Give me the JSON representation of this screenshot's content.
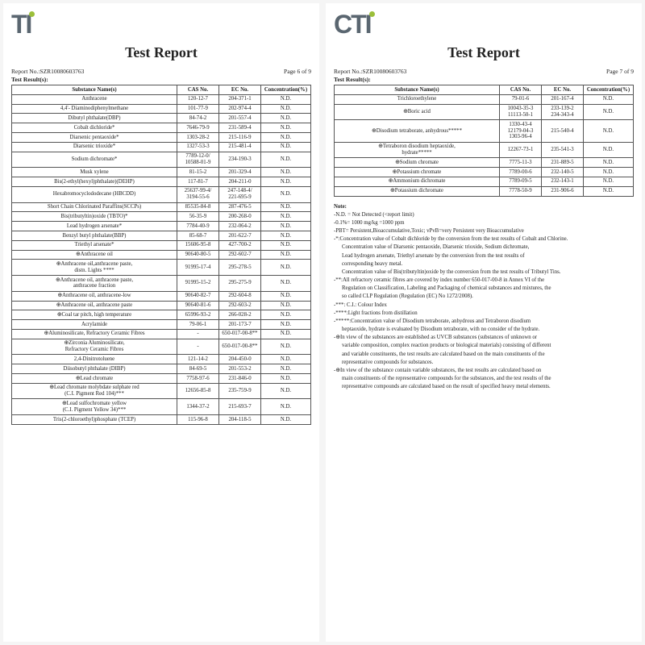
{
  "logo": {
    "full": "CTI",
    "partial": "TI"
  },
  "title": "Test Report",
  "reportNo": "Report No.:SZR10080603763",
  "page6": "Page 6 of 9",
  "page7": "Page 7 of 9",
  "resultLabel": "Test Result(s):",
  "headers": {
    "name": "Substance Name(s)",
    "cas": "CAS No.",
    "ec": "EC No.",
    "conc": "Concentration(%)"
  },
  "nd": "N.D.",
  "table6": [
    {
      "n": "Anthracene",
      "c": "120-12-7",
      "e": "204-371-1"
    },
    {
      "n": "4,4'- Diaminodiphenylmethane",
      "c": "101-77-9",
      "e": "202-974-4"
    },
    {
      "n": "Dibutyl phthalate(DBP)",
      "c": "84-74-2",
      "e": "201-557-4"
    },
    {
      "n": "Cobalt dichloride*",
      "c": "7646-79-9",
      "e": "231-589-4"
    },
    {
      "n": "Diarsenic pentaoxide*",
      "c": "1303-28-2",
      "e": "215-116-9"
    },
    {
      "n": "Diarsenic trioxide*",
      "c": "1327-53-3",
      "e": "215-481-4"
    },
    {
      "n": "Sodium dichromate*",
      "c": "7789-12-0/\n10588-01-9",
      "e": "234-190-3"
    },
    {
      "n": "Musk xylene",
      "c": "81-15-2",
      "e": "201-329-4"
    },
    {
      "n": "Bis(2-ethyl(hexyl)phthalate)(DEHP)",
      "c": "117-81-7",
      "e": "204-211-0"
    },
    {
      "n": "Hexabromocyclododecane (HBCDD)",
      "c": "25637-99-4/\n3194-55-6",
      "e": "247-148-4/\n221-695-9"
    },
    {
      "n": "Short Chain Chlorinated Paraffins(SCCPs)",
      "c": "85535-84-8",
      "e": "287-476-5"
    },
    {
      "n": "Bis(tributyltin)oxide (TBTO)*",
      "c": "56-35-9",
      "e": "200-268-0"
    },
    {
      "n": "Lead hydrogen arsenate*",
      "c": "7784-40-9",
      "e": "232-064-2"
    },
    {
      "n": "Benzyl butyl phthalate(BBP)",
      "c": "85-68-7",
      "e": "201-622-7"
    },
    {
      "n": "Triethyl arsenate*",
      "c": "15606-95-8",
      "e": "427-700-2"
    },
    {
      "n": "⊕Anthracene oil",
      "c": "90640-80-5",
      "e": "292-602-7"
    },
    {
      "n": "⊕Anthracene oil,anthracene paste,\ndistn. Lights ****",
      "c": "91995-17-4",
      "e": "295-278-5"
    },
    {
      "n": "⊕Anthracene oil, anthracene paste,\nanthracene fraction",
      "c": "91995-15-2",
      "e": "295-275-9"
    },
    {
      "n": "⊕Anthracene oil, anthracene-low",
      "c": "90640-82-7",
      "e": "292-604-8"
    },
    {
      "n": "⊕Anthracene oil, anthracene paste",
      "c": "90640-81-6",
      "e": "292-603-2"
    },
    {
      "n": "⊕Coal tar pitch, high temperature",
      "c": "65996-93-2",
      "e": "266-028-2"
    },
    {
      "n": "Acrylamide",
      "c": "79-06-1",
      "e": "201-173-7"
    },
    {
      "n": "⊕Aluminosilicate, Refractory Ceramic Fibres",
      "c": "-",
      "e": "650-017-00-8**"
    },
    {
      "n": "⊕Zirconia Aluminosilicate,\nRefractory Ceramic Fibres",
      "c": "-",
      "e": "650-017-00-8**"
    },
    {
      "n": "2,4-Dinitrotoluene",
      "c": "121-14-2",
      "e": "204-450-0"
    },
    {
      "n": "Diisobutyl phthalate (DIBP)",
      "c": "84-69-5",
      "e": "201-553-2"
    },
    {
      "n": "⊕Lead chromate",
      "c": "7758-97-6",
      "e": "231-846-0"
    },
    {
      "n": "⊕Lead chromate molybdate sulphate red\n(C.I. Pigment Red 104)***",
      "c": "12656-85-8",
      "e": "235-759-9"
    },
    {
      "n": "⊕Lead sulfochromate yellow\n(C.I. Pigment Yellow 34)***",
      "c": "1344-37-2",
      "e": "215-693-7"
    },
    {
      "n": "Tris(2-chloroethyl)phosphate (TCEP)",
      "c": "115-96-8",
      "e": "204-118-5"
    }
  ],
  "table7": [
    {
      "n": "Trichloroethylene",
      "c": "79-01-6",
      "e": "201-167-4",
      "r": 1
    },
    {
      "n": "⊕Boric acid",
      "c": "10043-35-3\n11113-50-1",
      "e": "233-139-2\n234-343-4",
      "r": 1
    },
    {
      "n": "⊕Disodium tetraborate, anhydrous*****",
      "c": "1330-43-4\n12179-04-3\n1303-96-4",
      "e": "215-540-4",
      "r": 1
    },
    {
      "n": "⊕Tetraboron disodium heptaoxide,\nhydrate*****",
      "c": "12267-73-1",
      "e": "235-541-3",
      "r": 1
    },
    {
      "n": "⊕Sodium chromate",
      "c": "7775-11-3",
      "e": "231-889-5",
      "r": 1
    },
    {
      "n": "⊕Potassium chromate",
      "c": "7789-00-6",
      "e": "232-140-5",
      "r": 1
    },
    {
      "n": "⊕Ammonium dichromate",
      "c": "7789-09-5",
      "e": "232-143-1",
      "r": 1
    },
    {
      "n": "⊕Potassium dichromate",
      "c": "7778-50-9",
      "e": "231-906-6",
      "r": 1
    }
  ],
  "noteTitle": "Note:",
  "notes": [
    "-N.D. = Not Detected (<report limit)",
    "-0.1%= 1000 mg/kg =1000 ppm",
    "-PBT= Persistent,Bioaccumulative,Toxic; vPvB=very Persistent very Bioaccumulative",
    "-*:Concentration value of Cobalt dichloride by the conversion from the test results of Cobalt and Chlorine.",
    "Concentration value of Diarsenic pentaoxide, Diarsenic trioxide, Sodium dichromate,",
    "Lead hydrogen arsenate, Triethyl arsenate by the conversion from the test results of",
    "corresponding heavy metal.",
    "Concentration value of Bis(tributyltin)oxide by the conversion from the test results of Tributyl Tins.",
    "-**:All refractory ceramic fibres are covered by index number 650-017-00-8 in Annex VI of the",
    "Regulation on Classification, Labeling and Packaging of chemical substances and mixtures, the",
    "so called CLP Regulation (Regulation (EC) No 1272/2008).",
    "-***: C.I.: Colour Index",
    "-****:Light fractions from distillation",
    "-*****:Concentration value of Disodium tetraborate, anhydrous and Tetraboron disodium",
    "heptaoxide, hydrate is evaluated by Disodium tetraborate, with no consider of the hydrate.",
    "-⊕In view of the substances are established as UVCB substances (substances of unknown or",
    "variable composition, complex reaction products or biological materials) consisting of different",
    "and variable constituents, the test results are calculated based on the main constituents of the",
    "representative compounds for substances.",
    "-⊕In view of the substance contain variable substances, the test results are calculated based on",
    "main constituents of the representative compounds for the substances, and the test results of the",
    "representative compounds are calculated based on the result of specified heavy metal elements."
  ],
  "noteIndent": [
    false,
    false,
    false,
    false,
    true,
    true,
    true,
    true,
    false,
    true,
    true,
    false,
    false,
    false,
    true,
    false,
    true,
    true,
    true,
    false,
    true,
    true
  ]
}
